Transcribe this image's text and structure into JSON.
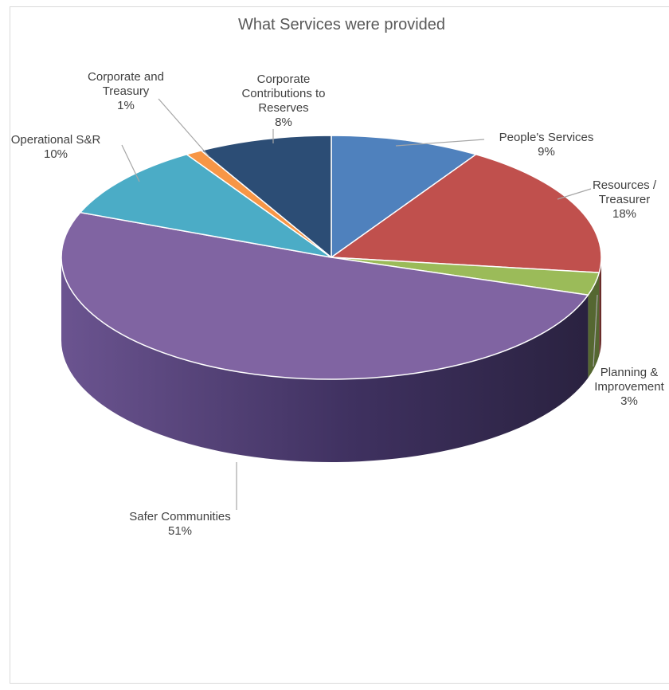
{
  "chart_data": {
    "type": "pie",
    "style": "3d",
    "title": "What Services were provided",
    "slices": [
      {
        "label_lines": [
          "People's Services"
        ],
        "pct": "9%",
        "value": 9,
        "color": "#4f81bd"
      },
      {
        "label_lines": [
          "Resources /",
          "Treasurer"
        ],
        "pct": "18%",
        "value": 18,
        "color": "#c0504d"
      },
      {
        "label_lines": [
          "Planning &",
          "Improvement"
        ],
        "pct": "3%",
        "value": 3,
        "color": "#9bbb59"
      },
      {
        "label_lines": [
          "Safer Communities"
        ],
        "pct": "51%",
        "value": 51,
        "color": "#8064a2"
      },
      {
        "label_lines": [
          "Operational S&R"
        ],
        "pct": "10%",
        "value": 10,
        "color": "#4bacc6"
      },
      {
        "label_lines": [
          "Corporate and",
          "Treasury"
        ],
        "pct": "1%",
        "value": 1,
        "color": "#f79646"
      },
      {
        "label_lines": [
          "Corporate",
          "Contributions to",
          "Reserves"
        ],
        "pct": "8%",
        "value": 8,
        "color": "#2c4d75"
      }
    ]
  }
}
